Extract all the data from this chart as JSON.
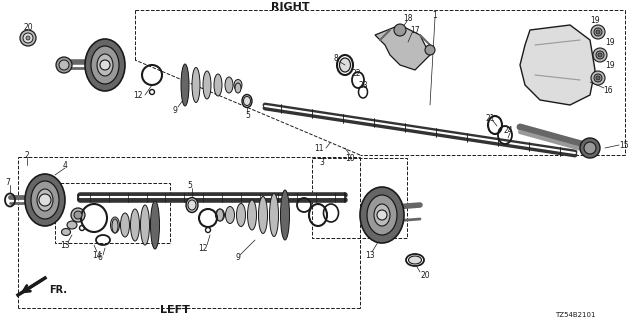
{
  "bg_color": "#ffffff",
  "lc": "#1a1a1a",
  "diagram_code": "TZ54B2101",
  "label_right": "RIGHT",
  "label_left": "LEFT",
  "label_fr": "FR.",
  "gray1": "#333333",
  "gray2": "#666666",
  "gray3": "#999999",
  "gray4": "#bbbbbb",
  "gray5": "#dddddd"
}
